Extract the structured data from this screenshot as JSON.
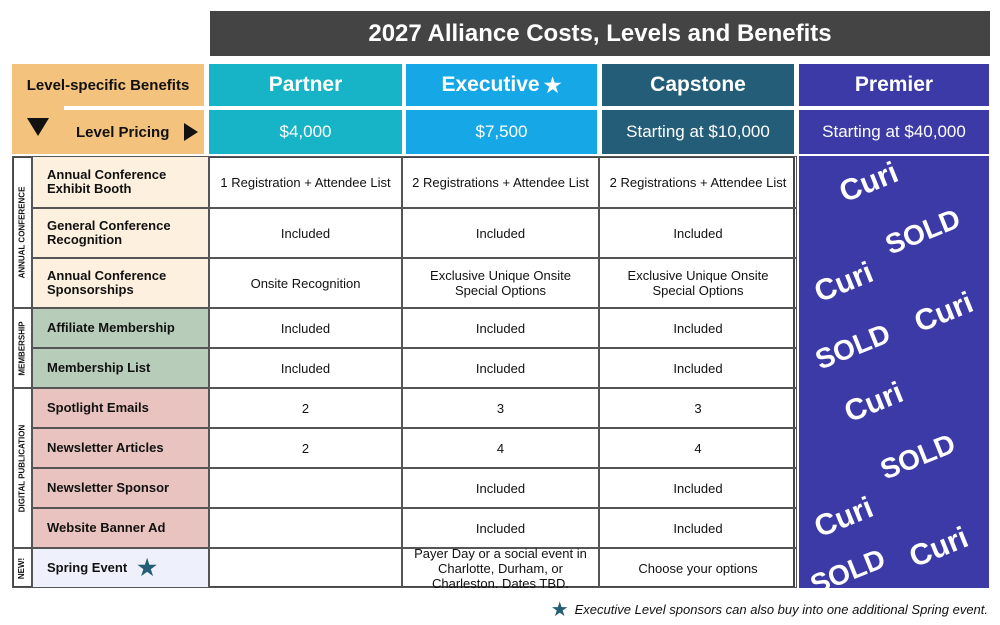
{
  "title": "2027 Alliance Costs, Levels and Benefits",
  "corner": {
    "benefits_label": "Level-specific Benefits",
    "pricing_label": "Level Pricing"
  },
  "levels": [
    {
      "name": "Partner",
      "price": "$4,000",
      "color": "#16b4c6"
    },
    {
      "name": "Executive",
      "price": "$7,500",
      "color": "#16a7e6",
      "star": "★"
    },
    {
      "name": "Capstone",
      "price": "Starting at $10,000",
      "color": "#245d77"
    },
    {
      "name": "Premier",
      "price": "Starting at $40,000",
      "color": "#3b3aa6"
    }
  ],
  "categories": [
    "ANNUAL CONFERENCE",
    "MEMBERSHIP",
    "DIGITAL PUBLICATION",
    "NEW!"
  ],
  "rows": [
    {
      "label": "Annual Conference Exhibit Booth",
      "partner": "1 Registration + Attendee List",
      "executive": "2 Registrations + Attendee List",
      "capstone": "2 Registrations + Attendee List"
    },
    {
      "label": "General Conference Recognition",
      "partner": "Included",
      "executive": "Included",
      "capstone": "Included"
    },
    {
      "label": "Annual Conference Sponsorships",
      "partner": "Onsite Recognition",
      "executive": "Exclusive Unique Onsite Special Options",
      "capstone": "Exclusive Unique Onsite Special Options"
    },
    {
      "label": "Affiliate Membership",
      "partner": "Included",
      "executive": "Included",
      "capstone": "Included"
    },
    {
      "label": "Membership List",
      "partner": "Included",
      "executive": "Included",
      "capstone": "Included"
    },
    {
      "label": "Spotlight Emails",
      "partner": "2",
      "executive": "3",
      "capstone": "3"
    },
    {
      "label": "Newsletter Articles",
      "partner": "2",
      "executive": "4",
      "capstone": "4"
    },
    {
      "label": "Newsletter Sponsor",
      "partner": "",
      "executive": "Included",
      "capstone": "Included"
    },
    {
      "label": "Website Banner Ad",
      "partner": "",
      "executive": "Included",
      "capstone": "Included"
    },
    {
      "label": "Spring Event",
      "partner": "",
      "executive": "Payer Day or a social event in Charlotte, Durham, or Charleston. Dates TBD.",
      "capstone": "Choose your options"
    }
  ],
  "premier_overlay": {
    "sold": "SOLD",
    "brand": "Curi"
  },
  "footnote": "Executive Level sponsors can also buy into one additional Spring event.",
  "footnote_star": "★",
  "star_color": "#245d77"
}
